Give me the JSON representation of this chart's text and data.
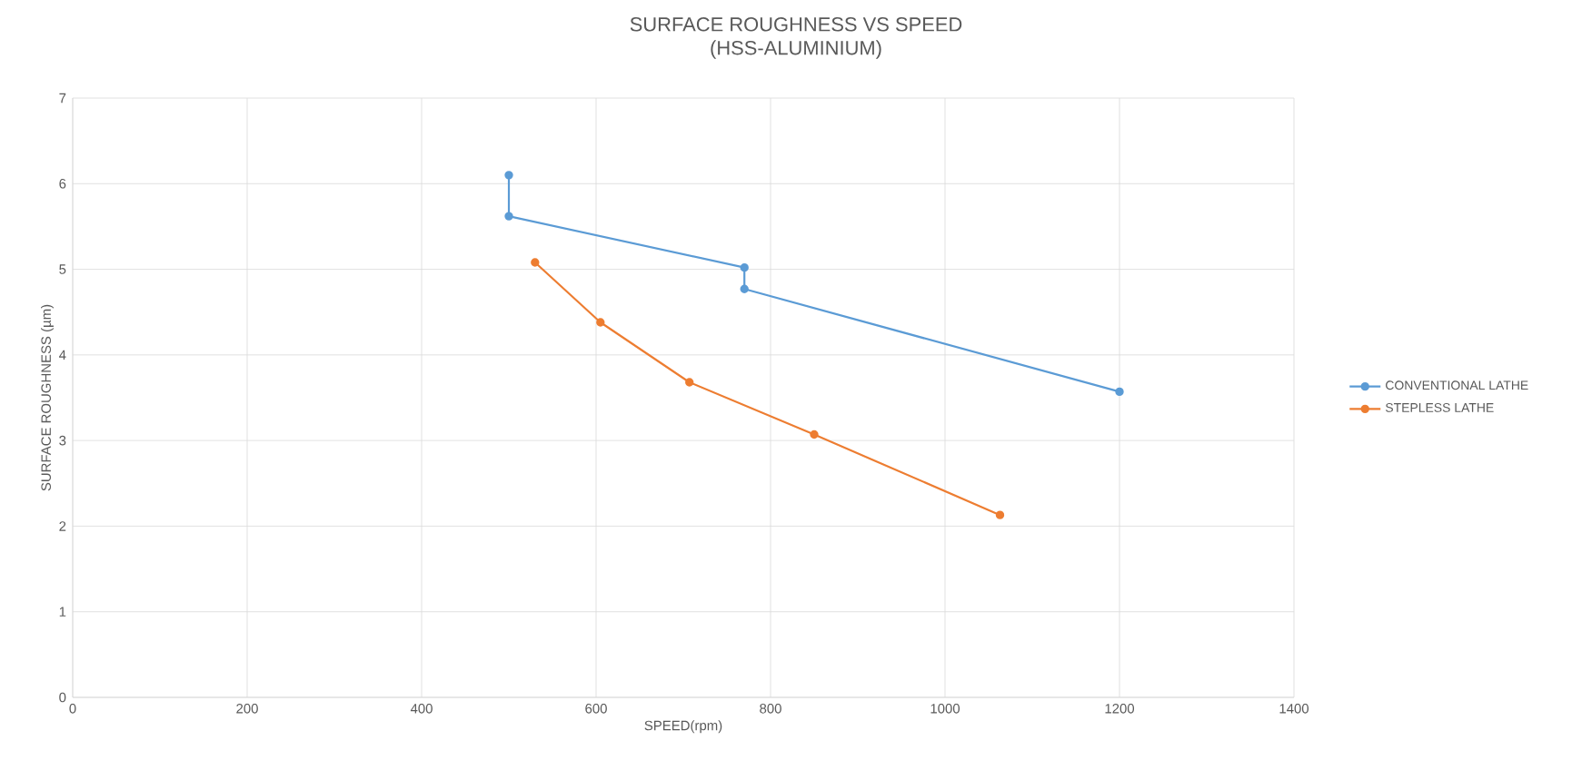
{
  "chart_data": {
    "type": "line",
    "title": "SURFACE ROUGHNESS VS SPEED",
    "subtitle": "(HSS-ALUMINIUM)",
    "xlabel": "SPEED(rpm)",
    "ylabel": "SURFACE ROUGHNESS (µm)",
    "xlim": [
      0,
      1400
    ],
    "xticks": [
      0,
      200,
      400,
      600,
      800,
      1000,
      1200,
      1400
    ],
    "ylim": [
      0,
      7
    ],
    "yticks": [
      0,
      1,
      2,
      3,
      4,
      5,
      6,
      7
    ],
    "grid": true,
    "legend": "right",
    "marker": "circle",
    "line_style": "solid",
    "series": [
      {
        "name": "CONVENTIONAL LATHE",
        "color": "#5b9bd5",
        "x": [
          500,
          500,
          770,
          770,
          1200
        ],
        "values": [
          6.1,
          5.62,
          5.02,
          4.77,
          3.57
        ]
      },
      {
        "name": "STEPLESS LATHE",
        "color": "#ed7d31",
        "x": [
          530,
          605,
          707,
          850,
          1063
        ],
        "values": [
          5.08,
          4.38,
          3.68,
          3.07,
          2.13
        ]
      }
    ]
  }
}
